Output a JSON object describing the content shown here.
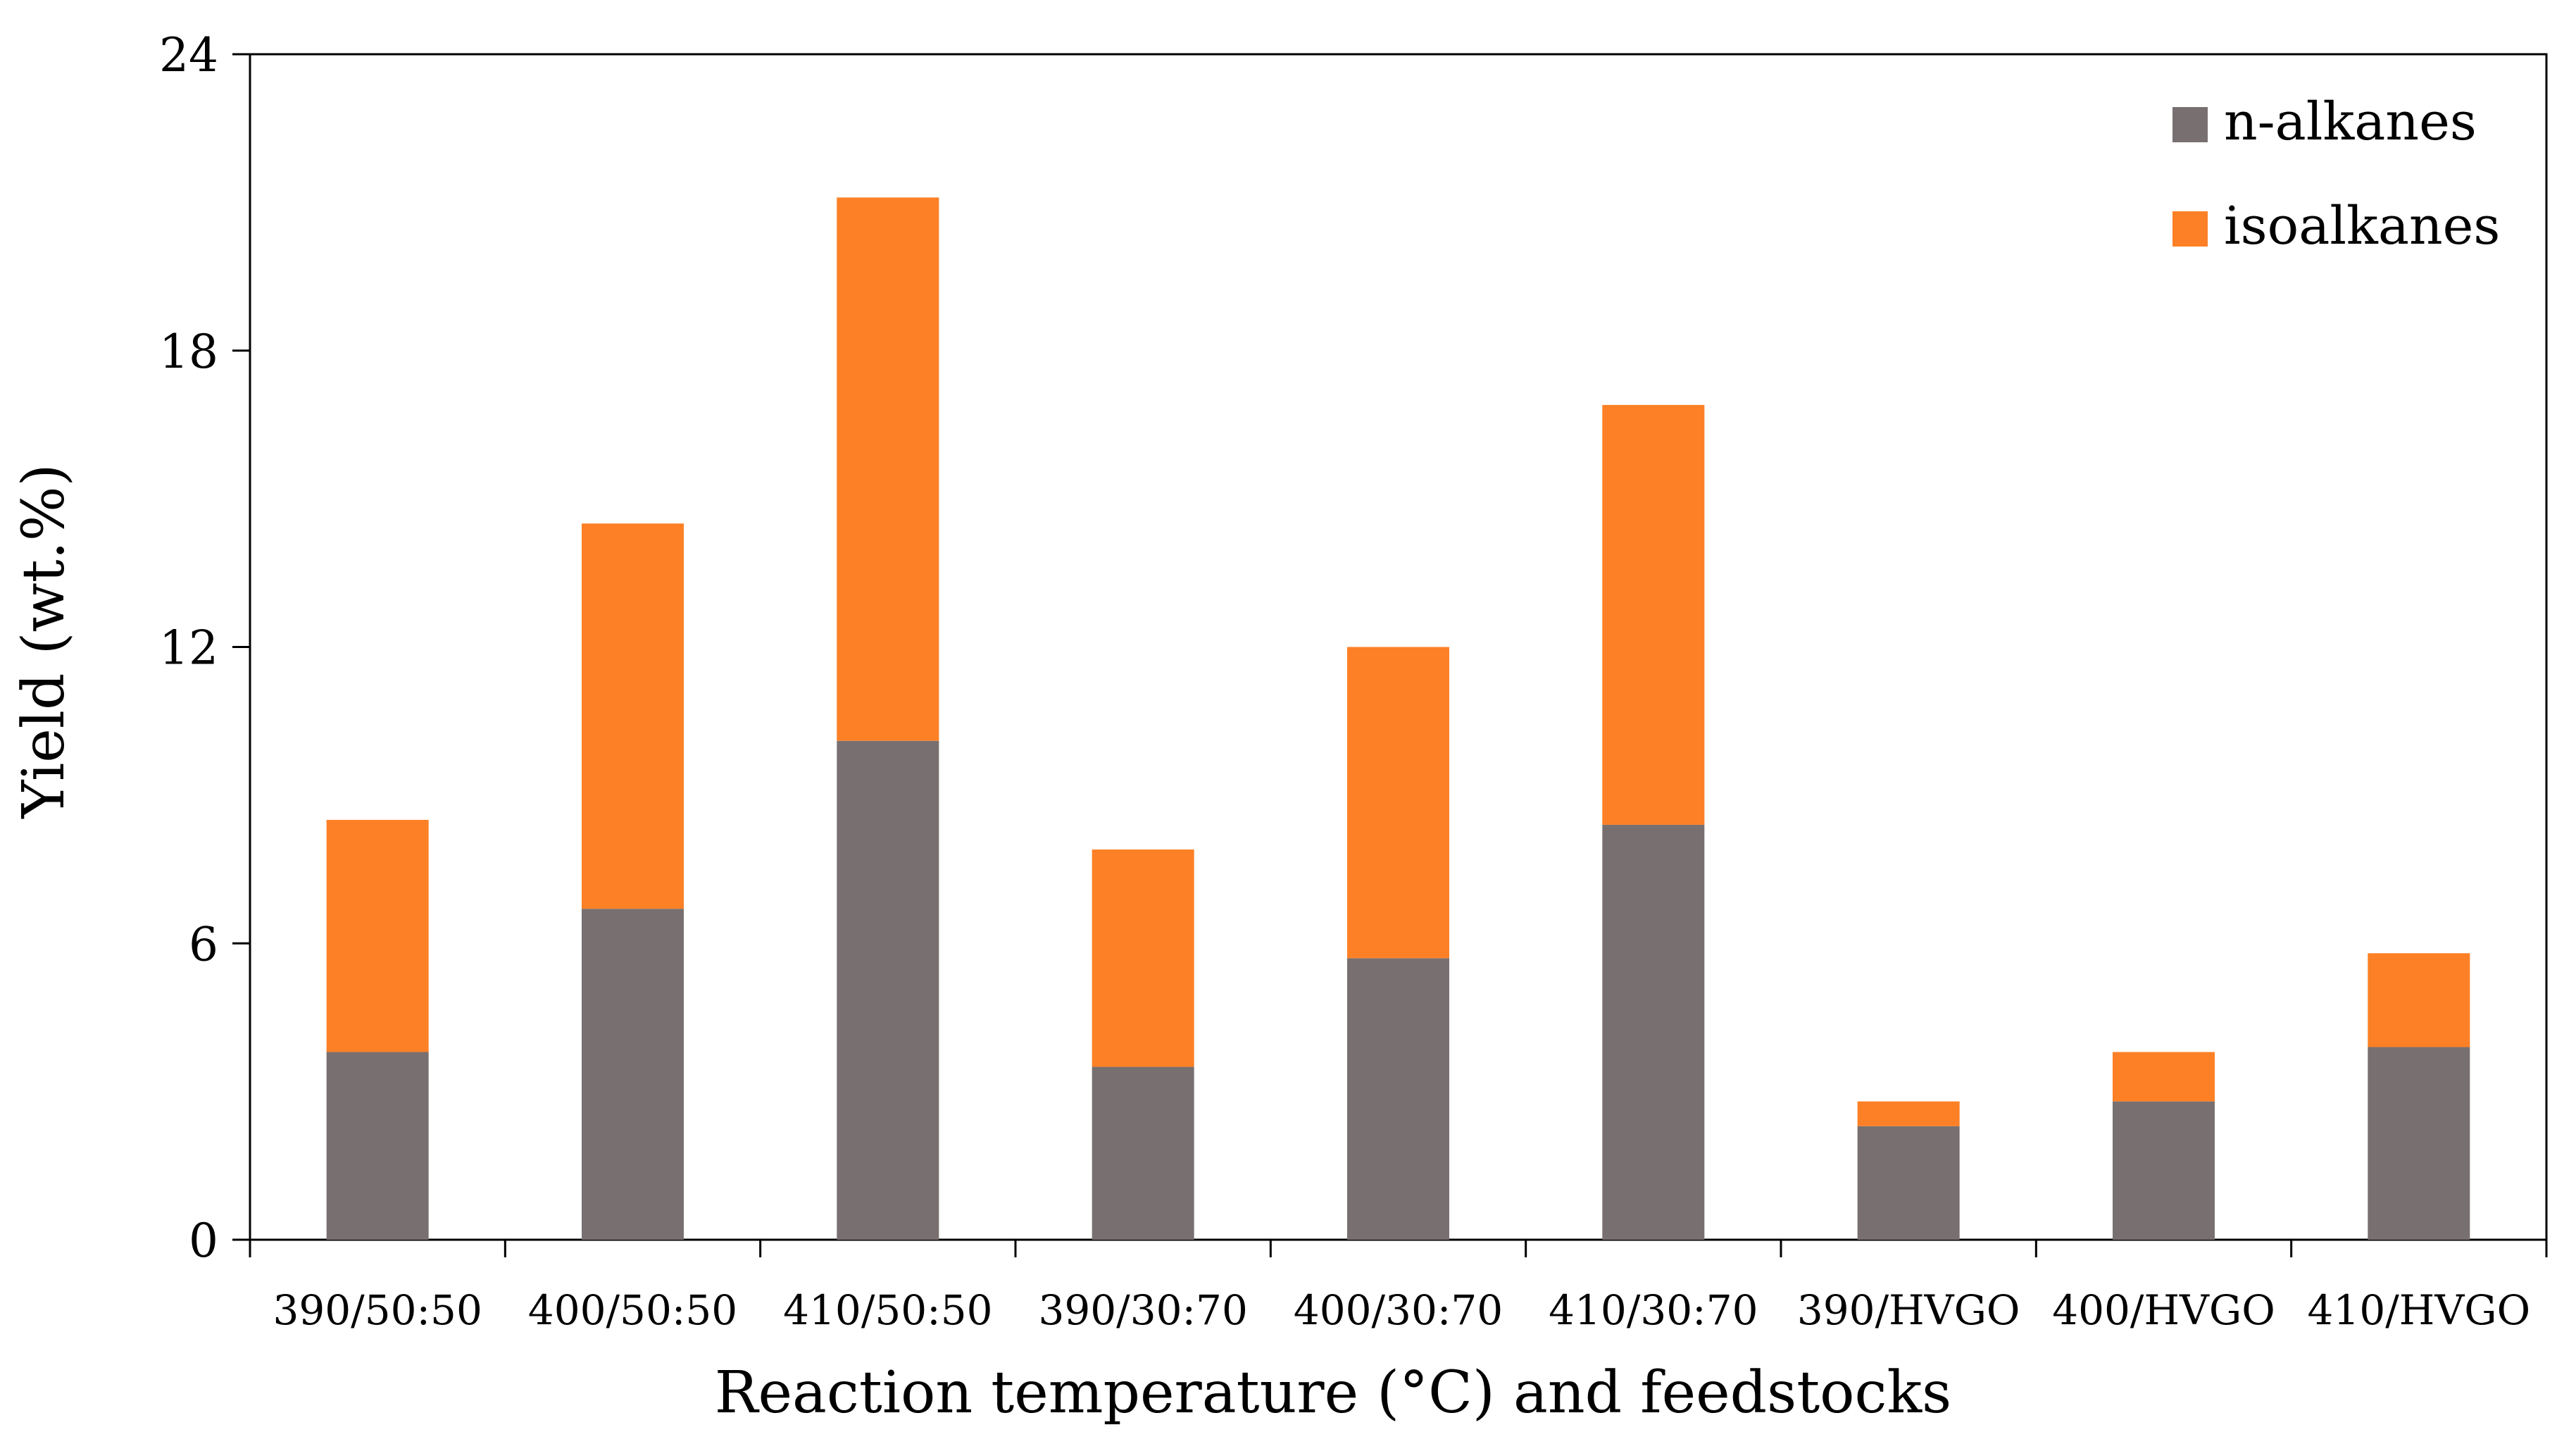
{
  "chart_data": {
    "type": "bar",
    "stacked": true,
    "title": "",
    "xlabel": "Reaction temperature (°C) and feedstocks",
    "ylabel": "Yield (wt.%)",
    "ylim": [
      0,
      24
    ],
    "yticks": [
      "0",
      "6",
      "12",
      "18",
      "24"
    ],
    "grid": false,
    "legend_position": "top-right",
    "categories": [
      "390/50:50",
      "400/50:50",
      "410/50:50",
      "390/30:70",
      "400/30:70",
      "410/30:70",
      "390/HVGO",
      "400/HVGO",
      "410/HVGO"
    ],
    "series": [
      {
        "name": "n-alkanes",
        "color": "#787070",
        "values": [
          3.8,
          6.7,
          10.1,
          3.5,
          5.7,
          8.4,
          2.3,
          2.8,
          3.9
        ]
      },
      {
        "name": "isoalkanes",
        "color": "#fd8026",
        "values": [
          4.7,
          7.8,
          11.0,
          4.4,
          6.3,
          8.5,
          0.5,
          1.0,
          1.9
        ]
      }
    ]
  }
}
